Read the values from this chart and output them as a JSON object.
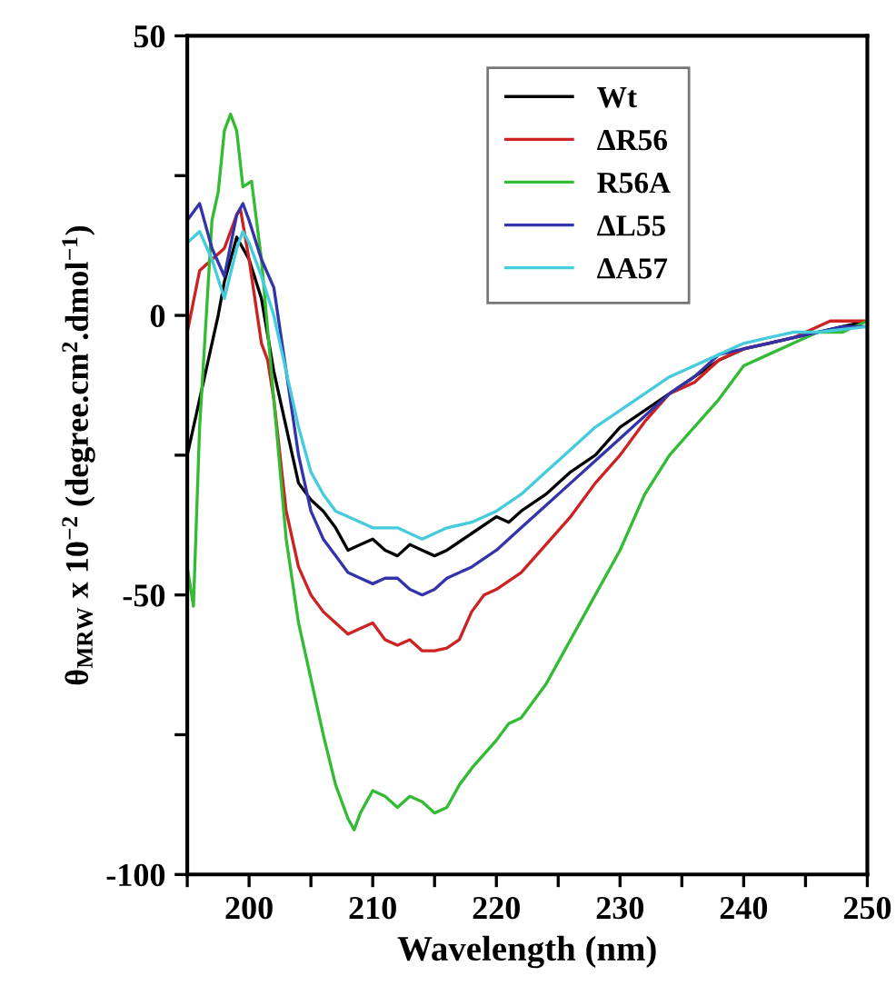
{
  "chart_data": {
    "type": "line",
    "xlabel": "Wavelength (nm)",
    "ylabel": "θ$_{MRW}$ x 10$^{−2}$ (degree.cm$^{2}$.dmol$^{−1}$)",
    "xlim": [
      195,
      250
    ],
    "ylim": [
      -100,
      50
    ],
    "xticks": [
      {
        "value": 195,
        "label": null
      },
      200,
      {
        "value": 205,
        "label": null
      },
      210,
      {
        "value": 215,
        "label": null
      },
      220,
      {
        "value": 225,
        "label": null
      },
      230,
      {
        "value": 235,
        "label": null
      },
      240,
      {
        "value": 245,
        "label": null
      },
      250
    ],
    "yticks": [
      -100,
      {
        "value": -75,
        "label": null
      },
      -50,
      {
        "value": -25,
        "label": null
      },
      0,
      {
        "value": 25,
        "label": null
      },
      50
    ],
    "grid": false,
    "legend": "top right",
    "marker": "none",
    "line_style": "solid",
    "series": [
      {
        "name": "Wt",
        "color": "#000000",
        "x": [
          195,
          196,
          197,
          197.5,
          198,
          199,
          200,
          201,
          202,
          203,
          204,
          205,
          206,
          207,
          208,
          209,
          210,
          211,
          212,
          213,
          214,
          215,
          216,
          218,
          220,
          221,
          222,
          224,
          226,
          228,
          230,
          232,
          234,
          236,
          238,
          240,
          242,
          244,
          246,
          248,
          250
        ],
        "values": [
          -25,
          -15,
          -5,
          0,
          6,
          14,
          10,
          3,
          -10,
          -20,
          -30,
          -33,
          -35,
          -38,
          -42,
          -41,
          -40,
          -42,
          -43,
          -41,
          -42,
          -43,
          -42,
          -39,
          -36,
          -37,
          -35,
          -32,
          -28,
          -25,
          -20,
          -17,
          -14,
          -11,
          -8,
          -6,
          -5,
          -4,
          -3,
          -2,
          -1
        ]
      },
      {
        "name": "ΔR56",
        "color": "#cc2222",
        "x": [
          195,
          196,
          197,
          198,
          199,
          199.3,
          200,
          201,
          201.5,
          202,
          203,
          204,
          205,
          206,
          207,
          208,
          209,
          210,
          211,
          212,
          213,
          214,
          215,
          216,
          217,
          218,
          219,
          220,
          222,
          224,
          226,
          228,
          230,
          232,
          234,
          236,
          238,
          240,
          244,
          247,
          248,
          250
        ],
        "values": [
          -3,
          8,
          10,
          12,
          18,
          19,
          10,
          -5,
          -8,
          -15,
          -35,
          -45,
          -50,
          -53,
          -55,
          -57,
          -56,
          -55,
          -58,
          -59,
          -58,
          -60,
          -60,
          -59.5,
          -58,
          -53,
          -50,
          -49,
          -46,
          -41,
          -36,
          -30,
          -25,
          -19,
          -14,
          -12,
          -8,
          -6,
          -4,
          -1,
          -1,
          -1
        ]
      },
      {
        "name": "R56A",
        "color": "#33bb33",
        "x": [
          195,
          195.5,
          196,
          197,
          197.5,
          198,
          198.5,
          199,
          199.5,
          200.2,
          201,
          202,
          203,
          204,
          205,
          206,
          207,
          208,
          208.5,
          209,
          210,
          211,
          212,
          213,
          214,
          215,
          216,
          217,
          218,
          220,
          221,
          222,
          224,
          226,
          228,
          230,
          232,
          234,
          236,
          238,
          240,
          242,
          244,
          246,
          248,
          250
        ],
        "values": [
          -45,
          -52,
          -20,
          17,
          22,
          33,
          36,
          33,
          23,
          24,
          10,
          -15,
          -40,
          -55,
          -65,
          -75,
          -84,
          -90,
          -92,
          -89,
          -85,
          -86,
          -88,
          -86,
          -87,
          -89,
          -88,
          -84,
          -81,
          -76,
          -73,
          -72,
          -66,
          -58,
          -50,
          -42,
          -32,
          -25,
          -20,
          -15,
          -9,
          -7,
          -5,
          -3,
          -3,
          -1
        ]
      },
      {
        "name": "ΔL55",
        "color": "#3333aa",
        "x": [
          195,
          196,
          197,
          198,
          199,
          199.5,
          200,
          201,
          202,
          203,
          204,
          205,
          206,
          207,
          208,
          209,
          210,
          211,
          212,
          213,
          214,
          215,
          216,
          218,
          220,
          222,
          224,
          226,
          228,
          230,
          232,
          234,
          236,
          238,
          240,
          242,
          244,
          246,
          248,
          250
        ],
        "values": [
          17,
          20,
          12,
          7,
          18,
          20,
          17,
          10,
          5,
          -10,
          -25,
          -35,
          -40,
          -43,
          -46,
          -47,
          -48,
          -47,
          -47,
          -49,
          -50,
          -49,
          -47,
          -45,
          -42,
          -38,
          -34,
          -30,
          -26,
          -22,
          -18,
          -14,
          -11,
          -7,
          -6,
          -5,
          -4,
          -3,
          -2,
          -2
        ]
      },
      {
        "name": "ΔA57",
        "color": "#44ccdd",
        "x": [
          195,
          196,
          197,
          198,
          199,
          199.5,
          200,
          201,
          202,
          203,
          204,
          205,
          206,
          207,
          208,
          210,
          212,
          214,
          215,
          216,
          218,
          220,
          222,
          224,
          226,
          228,
          230,
          232,
          234,
          236,
          238,
          240,
          242,
          244,
          246,
          250
        ],
        "values": [
          13,
          15,
          10,
          3,
          12,
          15,
          13,
          7,
          0,
          -10,
          -20,
          -28,
          -32,
          -35,
          -36,
          -38,
          -38,
          -40,
          -39,
          -38,
          -37,
          -35,
          -32,
          -28,
          -24,
          -20,
          -17,
          -14,
          -11,
          -9,
          -7,
          -5,
          -4,
          -3,
          -3,
          -2
        ]
      }
    ]
  }
}
